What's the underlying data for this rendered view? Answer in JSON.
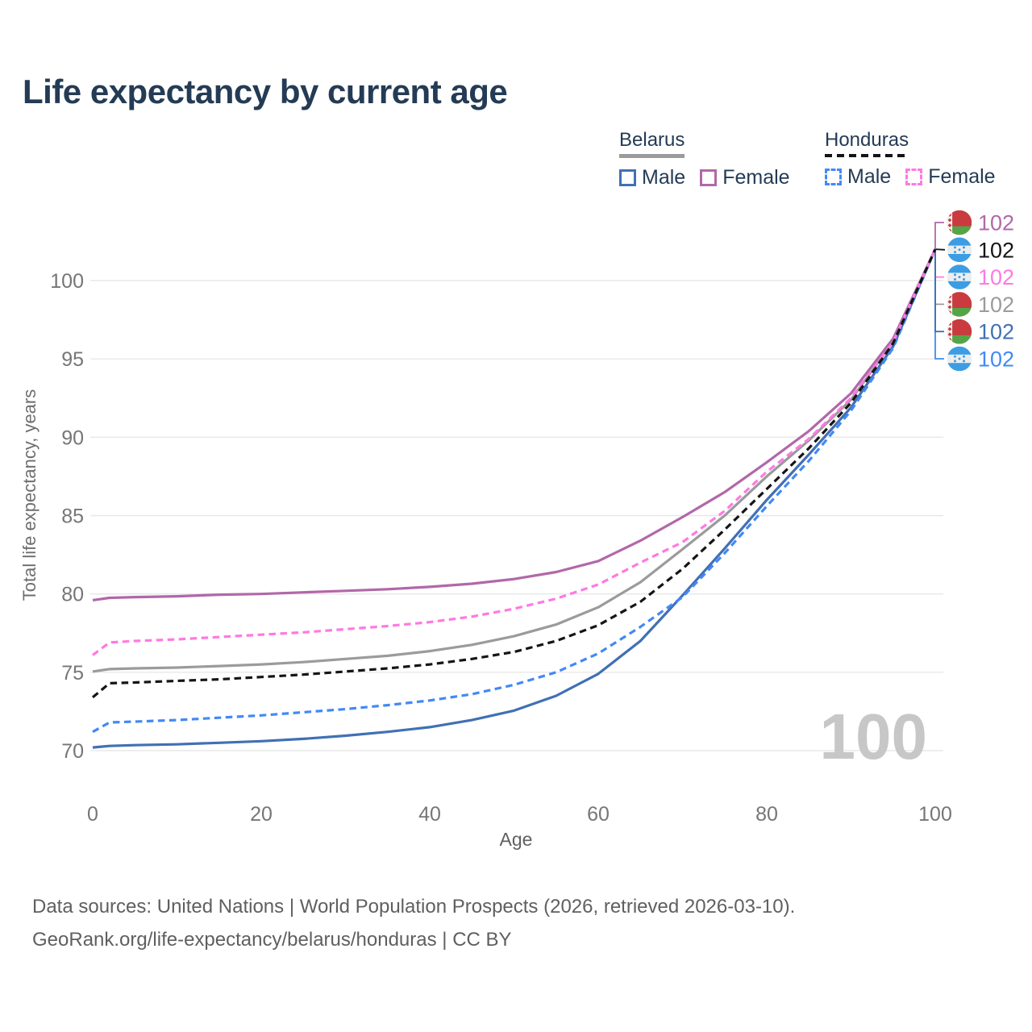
{
  "header": {
    "title": "Life expectancy by current age"
  },
  "legend": {
    "position": "top-right",
    "groups": [
      {
        "name": "Belarus",
        "style": "solid",
        "underline_color": "#9b9b9b",
        "items": [
          {
            "label": "Male",
            "color": "#4170b4",
            "dashed": false
          },
          {
            "label": "Female",
            "color": "#b168a9",
            "dashed": false
          }
        ]
      },
      {
        "name": "Honduras",
        "style": "dashed",
        "underline_color": "#141414",
        "items": [
          {
            "label": "Male",
            "color": "#4289f5",
            "dashed": true
          },
          {
            "label": "Female",
            "color": "#ff79e2",
            "dashed": true
          }
        ]
      }
    ]
  },
  "flags": {
    "belarus": {
      "red": "#c93b3f",
      "green": "#55a546",
      "white": "#f2f2f2"
    },
    "honduras": {
      "blue": "#3b9de4",
      "white": "#ededed"
    }
  },
  "chart_data": {
    "type": "line",
    "title": "Life expectancy by current age",
    "xlabel": "Age",
    "ylabel": "Total life expectancy, years",
    "x_ticks": [
      0,
      20,
      40,
      60,
      80,
      100
    ],
    "y_ticks": [
      70,
      75,
      80,
      85,
      90,
      95,
      100
    ],
    "xlim": [
      0,
      100
    ],
    "ylim": [
      70,
      102
    ],
    "grid": true,
    "legend_position": "top-right",
    "age_indicator": "100",
    "end_value": 102,
    "ages": [
      0,
      2,
      5,
      10,
      15,
      20,
      25,
      30,
      35,
      40,
      45,
      50,
      55,
      60,
      65,
      70,
      75,
      80,
      85,
      90,
      95,
      100
    ],
    "series": [
      {
        "id": "belarus-female",
        "name": "Belarus Female",
        "country": "belarus",
        "color": "#b168a9",
        "dashed": false,
        "z": 1,
        "row": 0,
        "end_label": "102",
        "values": [
          79.6,
          79.75,
          79.8,
          79.85,
          79.95,
          80.0,
          80.1,
          80.2,
          80.3,
          80.45,
          80.65,
          80.95,
          81.4,
          82.1,
          83.4,
          84.9,
          86.5,
          88.4,
          90.4,
          92.8,
          96.3,
          102
        ]
      },
      {
        "id": "honduras-average",
        "name": "Honduras",
        "country": "honduras",
        "color": "#151515",
        "dashed": true,
        "z": 5,
        "row": 1,
        "end_label": "102",
        "values": [
          73.4,
          74.3,
          74.35,
          74.45,
          74.55,
          74.7,
          74.85,
          75.05,
          75.25,
          75.5,
          75.85,
          76.3,
          77.0,
          78.0,
          79.5,
          81.6,
          84.1,
          86.7,
          89.3,
          92.2,
          96.0,
          102
        ]
      },
      {
        "id": "honduras-female",
        "name": "Honduras Female",
        "country": "honduras",
        "color": "#ff79e2",
        "dashed": true,
        "z": 4,
        "row": 2,
        "end_label": "102",
        "values": [
          76.1,
          76.9,
          77.0,
          77.1,
          77.25,
          77.4,
          77.55,
          77.75,
          77.95,
          78.2,
          78.55,
          79.05,
          79.7,
          80.6,
          82.0,
          83.3,
          85.3,
          87.8,
          89.9,
          92.5,
          96.1,
          102
        ]
      },
      {
        "id": "belarus-average",
        "name": "Belarus",
        "country": "belarus",
        "color": "#9b9b9b",
        "dashed": false,
        "z": 0,
        "row": 3,
        "end_label": "102",
        "values": [
          75.05,
          75.2,
          75.25,
          75.3,
          75.4,
          75.5,
          75.65,
          75.85,
          76.05,
          76.35,
          76.75,
          77.3,
          78.05,
          79.15,
          80.75,
          82.85,
          85.0,
          87.5,
          89.8,
          92.4,
          96.1,
          102
        ]
      },
      {
        "id": "belarus-male",
        "name": "Belarus Male",
        "country": "belarus",
        "color": "#4170b4",
        "dashed": false,
        "z": 2,
        "row": 4,
        "end_label": "102",
        "values": [
          70.2,
          70.3,
          70.35,
          70.4,
          70.5,
          70.6,
          70.75,
          70.95,
          71.2,
          71.5,
          71.95,
          72.55,
          73.5,
          74.9,
          77.0,
          79.9,
          82.9,
          86.0,
          88.9,
          91.9,
          95.8,
          102
        ]
      },
      {
        "id": "honduras-male",
        "name": "Honduras Male",
        "country": "honduras",
        "color": "#4289f5",
        "dashed": true,
        "z": 3,
        "row": 5,
        "end_label": "102",
        "values": [
          71.2,
          71.8,
          71.85,
          71.95,
          72.1,
          72.25,
          72.45,
          72.65,
          72.9,
          73.2,
          73.6,
          74.2,
          75.0,
          76.2,
          77.9,
          79.8,
          82.6,
          85.6,
          88.5,
          91.7,
          95.7,
          102
        ]
      }
    ]
  },
  "footer": {
    "line1": "Data sources: United Nations | World Population Prospects (2026, retrieved 2026-03-10).",
    "line2": "GeoRank.org/life-expectancy/belarus/honduras | CC BY"
  }
}
